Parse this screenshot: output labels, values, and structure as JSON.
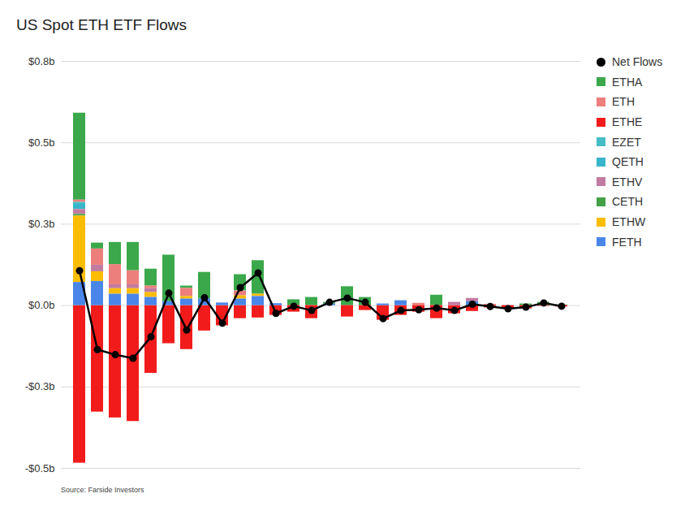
{
  "chart_data": {
    "type": "bar",
    "title": "US Spot ETH ETF Flows",
    "caption": "Source: Farside Investors",
    "stacked": true,
    "grid": true,
    "legend": "right",
    "tick_labels": "y",
    "categories": [
      null,
      null,
      null,
      null,
      null,
      null,
      null,
      null,
      null,
      null,
      null,
      null,
      null,
      null,
      null,
      null,
      null,
      null,
      null,
      null,
      null,
      null,
      null,
      null,
      null,
      null,
      null,
      null
    ],
    "ylim": [
      -0.5,
      0.75
    ],
    "yticks": [
      {
        "value": 0.75,
        "label": "$0.8b"
      },
      {
        "value": 0.5,
        "label": "$0.5b"
      },
      {
        "value": 0.25,
        "label": "$0.3b"
      },
      {
        "value": 0,
        "label": "$0.0b"
      },
      {
        "value": -0.25,
        "label": "-$0.3b"
      },
      {
        "value": -0.5,
        "label": "-$0.5b"
      }
    ],
    "series": [
      {
        "name": "Net Flows",
        "type": "line",
        "marker": "circle",
        "color": "#000000",
        "values": [
          0.107,
          -0.135,
          -0.151,
          -0.162,
          -0.096,
          0.038,
          -0.075,
          0.024,
          -0.054,
          0.055,
          0.1,
          -0.024,
          -0.002,
          -0.015,
          0.01,
          0.023,
          0.01,
          -0.04,
          -0.015,
          -0.013,
          -0.008,
          -0.015,
          0.004,
          -0.003,
          -0.01,
          -0.005,
          0.008,
          -0.002
        ]
      },
      {
        "name": "ETHA",
        "type": "bar",
        "color": "#3ba84b",
        "values": [
          0.267,
          0.018,
          0.068,
          0.087,
          0.052,
          0.143,
          0.007,
          0.082,
          0,
          0.05,
          0.103,
          0,
          0.018,
          0.025,
          0.005,
          0.058,
          0.025,
          0,
          0,
          0,
          0.032,
          0,
          0,
          0,
          0,
          0.005,
          0.01,
          0.002
        ]
      },
      {
        "name": "ETH",
        "type": "bar",
        "color": "#ec7f7b",
        "values": [
          0.007,
          0.05,
          0.062,
          0.043,
          0.008,
          0,
          0.025,
          0,
          0,
          0.015,
          0,
          0,
          0,
          0,
          0,
          0,
          0,
          0,
          0,
          0.007,
          0,
          0,
          0,
          0.004,
          0,
          0,
          0,
          0
        ]
      },
      {
        "name": "ETHE",
        "type": "bar",
        "color": "#f21b1b",
        "values": [
          -0.484,
          -0.327,
          -0.345,
          -0.356,
          -0.208,
          -0.117,
          -0.135,
          -0.078,
          -0.062,
          -0.04,
          -0.038,
          -0.03,
          -0.02,
          -0.04,
          0,
          -0.035,
          -0.015,
          -0.045,
          -0.03,
          -0.02,
          -0.04,
          -0.025,
          -0.018,
          -0.007,
          -0.01,
          -0.01,
          -0.002,
          -0.004
        ]
      },
      {
        "name": "EZET",
        "type": "bar",
        "color": "#46bdc6",
        "values": [
          0.006,
          0,
          0,
          0,
          0,
          0,
          0,
          0,
          0,
          0,
          0,
          0,
          0,
          0,
          0,
          0,
          0,
          0,
          0,
          0,
          0,
          0,
          0,
          0,
          0,
          0,
          0,
          0
        ]
      },
      {
        "name": "QETH",
        "type": "bar",
        "color": "#38b5cb",
        "values": [
          0.016,
          0,
          0,
          0,
          0,
          0,
          0,
          0,
          0,
          0,
          0,
          0,
          0,
          0,
          0,
          0,
          0,
          0,
          0,
          0,
          0,
          0,
          0,
          0,
          0,
          0,
          0,
          0
        ]
      },
      {
        "name": "ETHV",
        "type": "bar",
        "color": "#c27ba0",
        "values": [
          0.015,
          0.02,
          0.012,
          0.012,
          0.012,
          0,
          0,
          0,
          0,
          0,
          0,
          0,
          0,
          0,
          0,
          0,
          0,
          0,
          0,
          0,
          0,
          0.01,
          0.01,
          0,
          0,
          0,
          0,
          0
        ]
      },
      {
        "name": "CETH",
        "type": "bar",
        "color": "#43a047",
        "values": [
          0.005,
          0,
          0,
          0,
          0,
          0,
          0,
          0,
          0,
          0,
          0,
          0,
          0,
          0,
          0,
          0,
          0,
          0,
          0,
          0,
          0,
          0,
          0,
          0,
          0,
          0,
          0,
          0
        ]
      },
      {
        "name": "ETHW",
        "type": "bar",
        "color": "#fbbc04",
        "values": [
          0.204,
          0.03,
          0.017,
          0.017,
          0.015,
          0,
          0.008,
          0,
          0,
          0.01,
          0.007,
          0,
          0,
          0,
          0,
          0,
          0,
          0,
          0,
          0,
          0,
          0,
          0,
          0,
          0,
          0,
          0,
          0
        ]
      },
      {
        "name": "FETH",
        "type": "bar",
        "color": "#4a86e8",
        "values": [
          0.071,
          0.074,
          0.035,
          0.035,
          0.025,
          0.012,
          0.02,
          0.02,
          0.008,
          0.02,
          0.028,
          0.006,
          0,
          0,
          0.005,
          0,
          0,
          0.005,
          0.015,
          0,
          0,
          0,
          0.012,
          0,
          0,
          0,
          0,
          0
        ]
      }
    ]
  }
}
